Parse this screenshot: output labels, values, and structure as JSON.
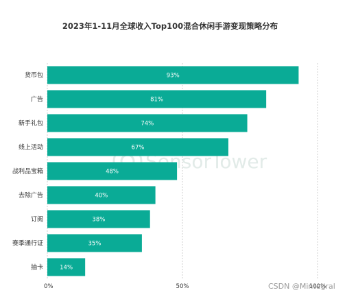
{
  "chart_data": {
    "type": "bar",
    "orientation": "horizontal",
    "title": "2023年1-11月全球收入Top100混合休闲手游变现策略分布",
    "categories": [
      "货币包",
      "广告",
      "新手礼包",
      "线上活动",
      "战利品宝箱",
      "去除广告",
      "订阅",
      "赛季通行证",
      "抽卡"
    ],
    "values": [
      93,
      81,
      74,
      67,
      48,
      40,
      38,
      35,
      14
    ],
    "value_labels": [
      "93%",
      "81%",
      "74%",
      "67%",
      "48%",
      "40%",
      "38%",
      "35%",
      "14%"
    ],
    "xlim": [
      0,
      100
    ],
    "x_ticks": [
      0,
      50,
      100
    ],
    "x_tick_labels": [
      "0%",
      "50%",
      "100%"
    ],
    "grid": "vertical dashed",
    "legend": "none",
    "bar_color": "#0aab96",
    "grid_color": "#cfcfcf"
  },
  "watermark": "SensorTower",
  "credit": "CSDN @Mintegral"
}
